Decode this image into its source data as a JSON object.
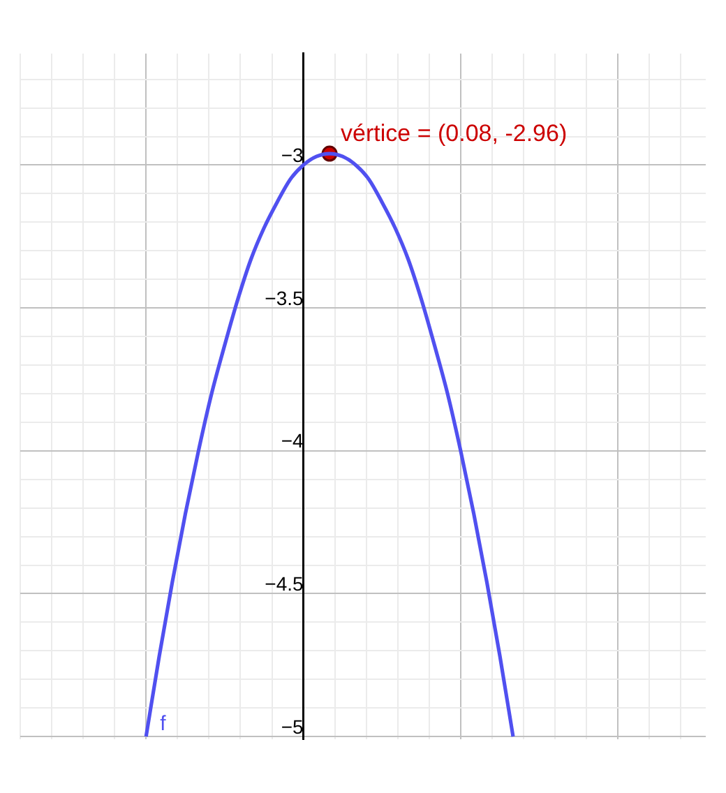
{
  "chart_data": {
    "type": "line",
    "categories": [
      null,
      null,
      null,
      null,
      null,
      null,
      null,
      null,
      null,
      null,
      null,
      null,
      null,
      null,
      null,
      null,
      null,
      null,
      null,
      null,
      null,
      null,
      null,
      null,
      null,
      null,
      null,
      null,
      null
    ],
    "ylim": [
      -5.01,
      -2.61
    ],
    "yticks": [
      {
        "value": -5,
        "label": "−5"
      },
      {
        "value": -4.9,
        "label": null
      },
      {
        "value": -4.8,
        "label": null
      },
      {
        "value": -4.7,
        "label": null
      },
      {
        "value": -4.6,
        "label": null
      },
      {
        "value": -4.5,
        "label": "−4.5"
      },
      {
        "value": -4.4,
        "label": null
      },
      {
        "value": -4.3,
        "label": null
      },
      {
        "value": -4.2,
        "label": null
      },
      {
        "value": -4.1,
        "label": null
      },
      {
        "value": -4,
        "label": "−4"
      },
      {
        "value": -3.9,
        "label": null
      },
      {
        "value": -3.8,
        "label": null
      },
      {
        "value": -3.7,
        "label": null
      },
      {
        "value": -3.6,
        "label": null
      },
      {
        "value": -3.5,
        "label": "−3.5"
      },
      {
        "value": -3.4,
        "label": null
      },
      {
        "value": -3.3,
        "label": null
      },
      {
        "value": -3.2,
        "label": null
      },
      {
        "value": -3.1,
        "label": null
      },
      {
        "value": -3,
        "label": "−3"
      },
      {
        "value": -2.9,
        "label": null
      },
      {
        "value": -2.8,
        "label": null
      },
      {
        "value": -2.7,
        "label": null
      }
    ],
    "tick_labels": "y",
    "grid": true,
    "annotations": [
      "vértice = (0.08, -2.96)"
    ],
    "series": [
      {
        "name": "f",
        "color": "#5050f0",
        "marker": "none",
        "line_style": "solid",
        "values": [
          -5,
          -4.72,
          -4.46,
          -4.22,
          -4,
          -3.8,
          -3.63,
          -3.47,
          -3.33,
          -3.22,
          -3.13,
          -3.05,
          -3,
          -2.97,
          -2.96,
          -2.97,
          -3,
          -3.05,
          -3.13,
          -3.22,
          -3.33,
          -3.47,
          -3.63,
          -3.8,
          -4,
          -4.22,
          -4.46,
          -4.72,
          -5
        ]
      },
      {
        "type": "scatter",
        "color": "#cc0000",
        "marker": "circle",
        "values": [
          null,
          null,
          null,
          null,
          null,
          null,
          null,
          null,
          null,
          null,
          null,
          null,
          null,
          null,
          -2.96,
          null,
          null,
          null,
          null,
          null,
          null,
          null,
          null,
          null,
          null,
          null,
          null,
          null,
          null
        ]
      }
    ]
  }
}
